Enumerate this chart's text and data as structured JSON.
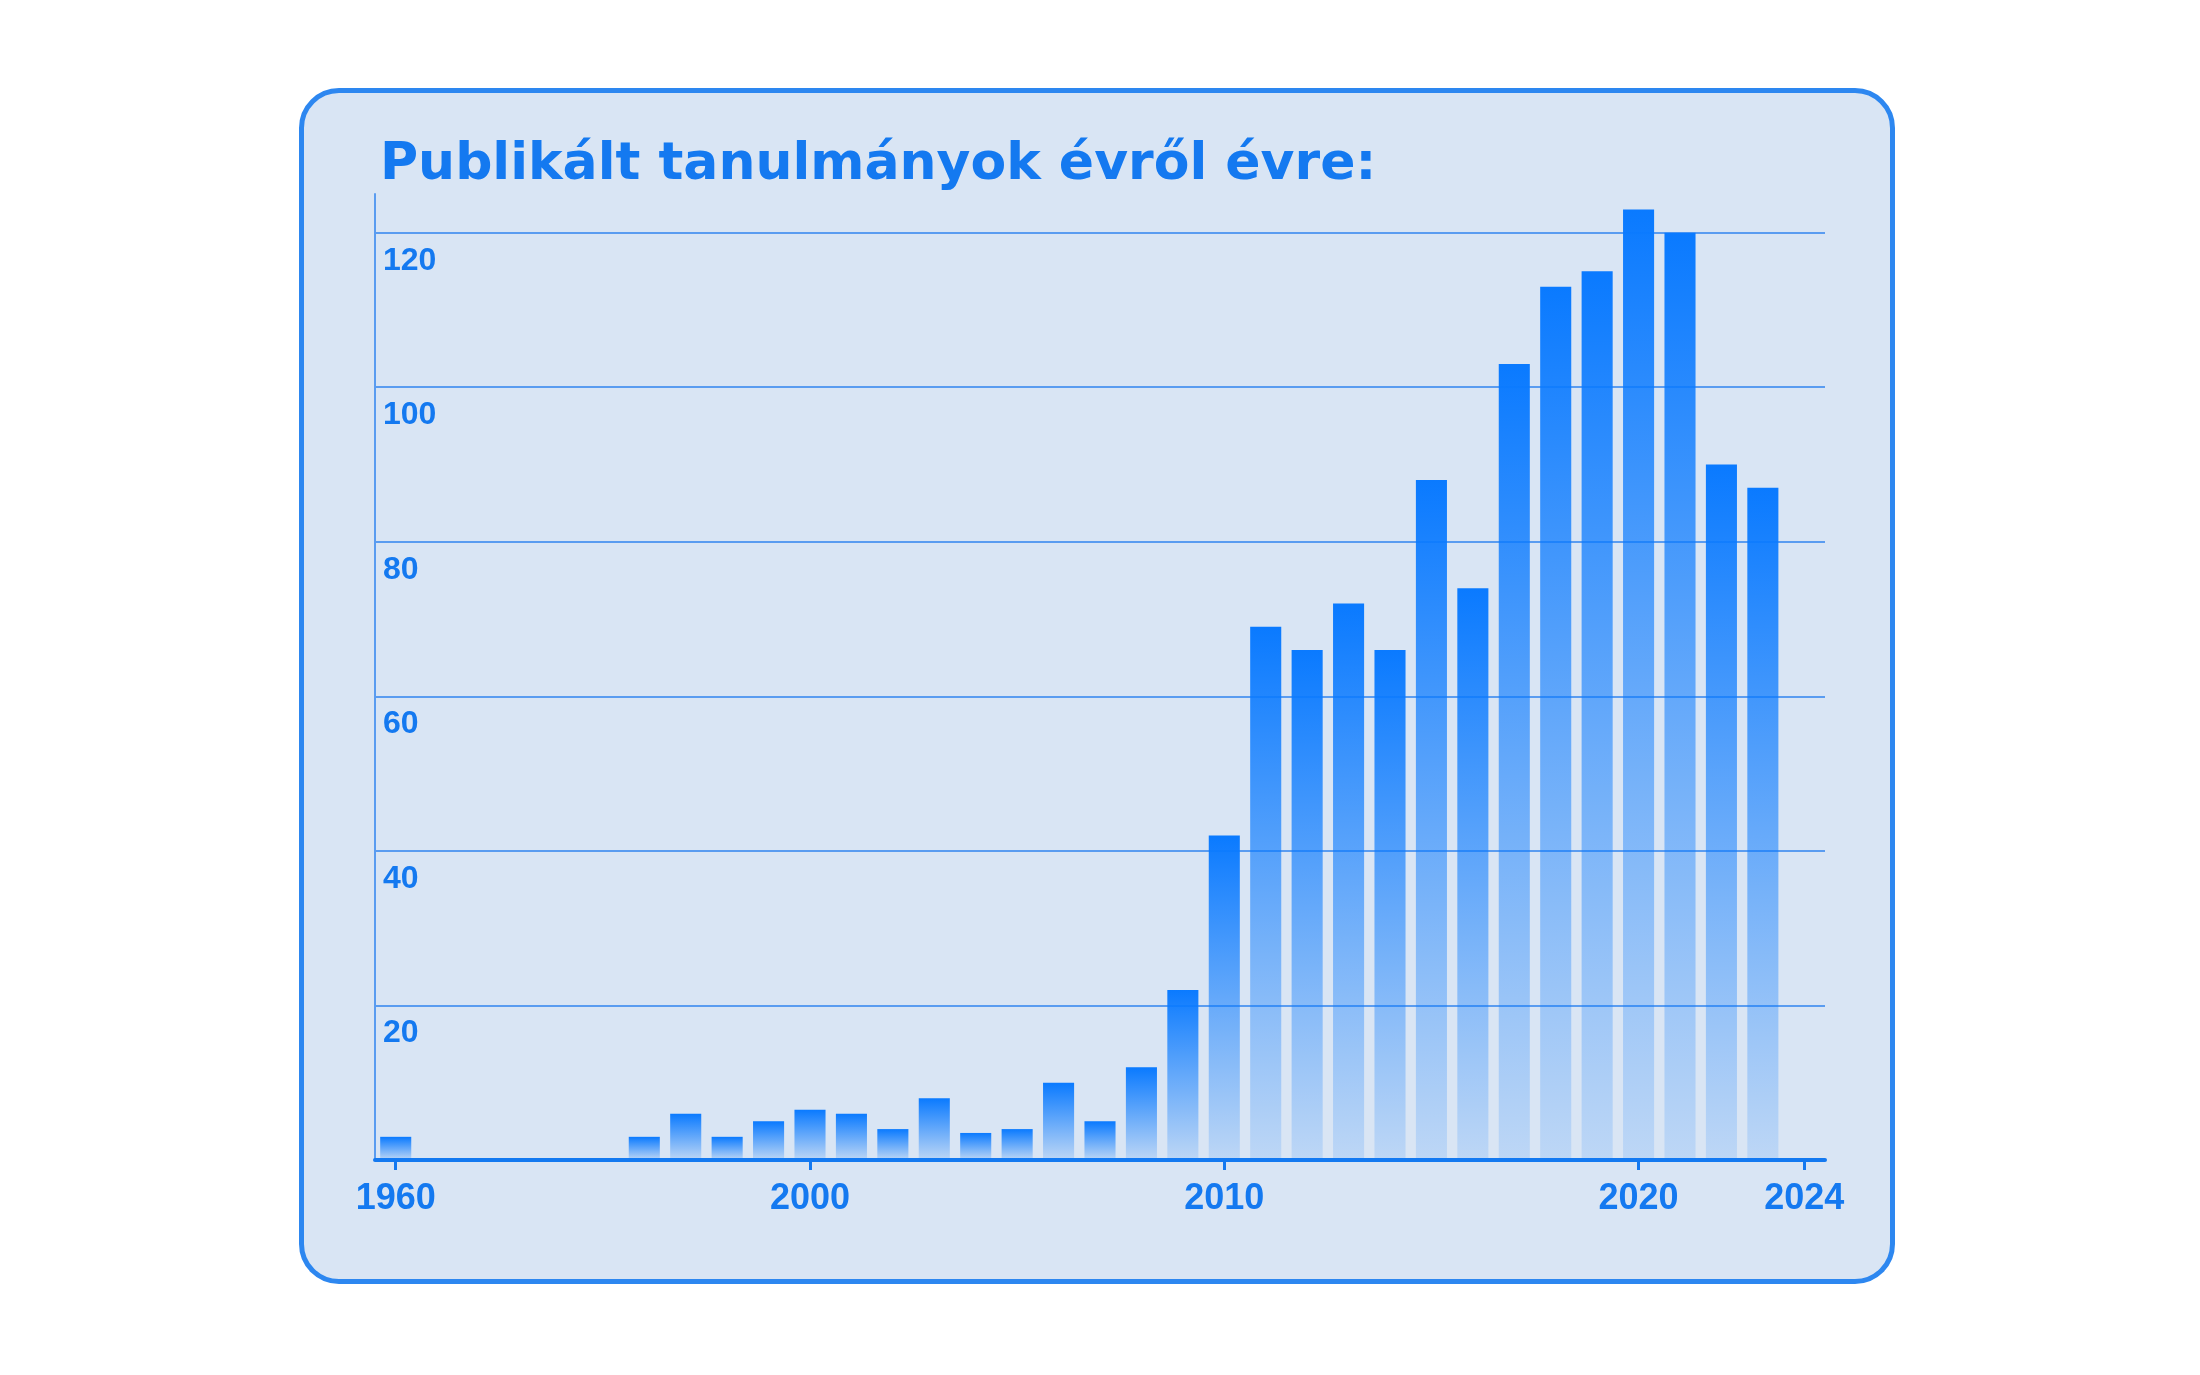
{
  "chart_data": {
    "type": "bar",
    "title": "Publikált tanulmányok évről évre:",
    "categories": [
      "1960",
      null,
      null,
      null,
      null,
      null,
      null,
      null,
      null,
      null,
      "2000",
      null,
      null,
      null,
      null,
      null,
      null,
      null,
      null,
      null,
      "2010",
      null,
      null,
      null,
      null,
      null,
      null,
      null,
      null,
      null,
      "2020",
      null,
      null,
      null,
      "2024"
    ],
    "values": [
      3,
      null,
      null,
      null,
      null,
      null,
      3,
      6,
      3,
      5,
      6.5,
      6,
      4,
      8,
      3.5,
      4,
      10,
      5,
      12,
      22,
      42,
      69,
      66,
      72,
      66,
      88,
      74,
      103,
      113,
      115,
      123,
      120,
      90,
      87,
      null
    ],
    "color": "#0a7aff",
    "ylim": [
      0,
      125
    ],
    "yticks": [
      {
        "value": 0,
        "label": null
      },
      20,
      40,
      60,
      80,
      100,
      120
    ],
    "grid": "y"
  }
}
